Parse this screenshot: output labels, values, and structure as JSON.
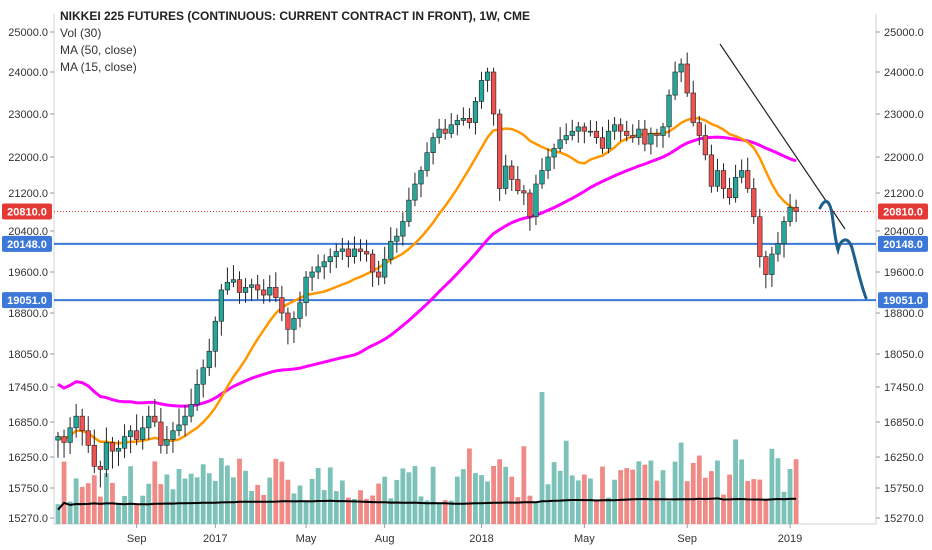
{
  "chart_data": {
    "type": "candlestick",
    "title": "NIKKEI 225 FUTURES (CONTINUOUS: CURRENT CONTRACT IN FRONT), 1W, CME",
    "indicators": [
      "Vol (30)",
      "MA (50, close)",
      "MA (15, close)"
    ],
    "y_ticks": [
      25000,
      24000,
      23000,
      22000,
      21200,
      20400,
      19600,
      18800,
      18050,
      17450,
      16850,
      16250,
      15750,
      15270
    ],
    "y_tick_labels": [
      "25000.0",
      "24000.0",
      "23000.0",
      "22000.0",
      "21200.0",
      "20400.0",
      "19600.0",
      "18800.0",
      "18050.0",
      "17450.0",
      "16850.0",
      "16250.0",
      "15750.0",
      "15270.0"
    ],
    "x_labels": [
      {
        "label": "Sep",
        "index": 13
      },
      {
        "label": "2017",
        "index": 26
      },
      {
        "label": "May",
        "index": 41
      },
      {
        "label": "Aug",
        "index": 54
      },
      {
        "label": "2018",
        "index": 70
      },
      {
        "label": "May",
        "index": 87
      },
      {
        "label": "Sep",
        "index": 104
      },
      {
        "label": "2019",
        "index": 121
      }
    ],
    "price_lines": [
      {
        "value": 20810.0,
        "label": "20810.0",
        "color": "#e53935",
        "style": "dotted"
      },
      {
        "value": 20148.0,
        "label": "20148.0",
        "color": "#3c78d8",
        "style": "solid"
      },
      {
        "value": 19051.0,
        "label": "19051.0",
        "color": "#3c78d8",
        "style": "solid"
      }
    ],
    "colors": {
      "up": "#26a69a",
      "down": "#ef5350",
      "ma50": "#ff00ff",
      "ma15": "#ff9800",
      "volume_ma": "#000000",
      "projection": "#1f5f8b"
    },
    "closes": [
      16600,
      16500,
      16750,
      16950,
      16700,
      16450,
      16100,
      16050,
      16500,
      16350,
      16400,
      16600,
      16700,
      16550,
      16750,
      16950,
      16850,
      16450,
      16550,
      16700,
      16800,
      16950,
      17150,
      17500,
      17800,
      18100,
      18650,
      19250,
      19400,
      19450,
      19200,
      19300,
      19350,
      19250,
      19150,
      19300,
      19100,
      18800,
      18500,
      18700,
      19000,
      19500,
      19600,
      19700,
      19800,
      19900,
      20000,
      20050,
      19900,
      20050,
      20000,
      19950,
      19600,
      19500,
      19850,
      20200,
      20300,
      20600,
      21050,
      21400,
      21700,
      22100,
      22450,
      22650,
      22550,
      22750,
      22850,
      22900,
      22800,
      23300,
      23800,
      24000,
      23000,
      21300,
      21800,
      21500,
      21250,
      21200,
      20700,
      21400,
      21700,
      22000,
      22200,
      22400,
      22500,
      22600,
      22700,
      22600,
      22600,
      22450,
      22200,
      22600,
      22750,
      22600,
      22500,
      22450,
      22650,
      22300,
      22550,
      22500,
      22700,
      23450,
      24000,
      24200,
      23500,
      22800,
      22500,
      22050,
      21350,
      21700,
      21300,
      21100,
      21550,
      21700,
      21300,
      20700,
      19900,
      19550,
      19950,
      20150,
      20600,
      20900,
      20810
    ]
  }
}
